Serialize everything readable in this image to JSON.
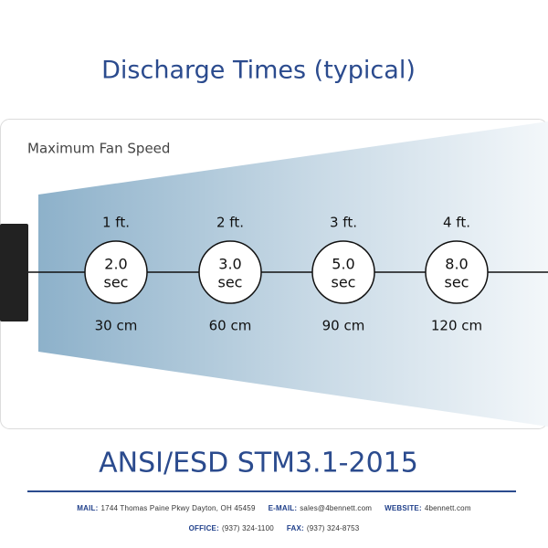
{
  "title": "Discharge Times (typical)",
  "panel_label": "Maximum Fan Speed",
  "points": [
    {
      "distance_ft": "1 ft.",
      "time": "2.0",
      "unit": "sec",
      "distance_cm": "30 cm"
    },
    {
      "distance_ft": "2 ft.",
      "time": "3.0",
      "unit": "sec",
      "distance_cm": "60 cm"
    },
    {
      "distance_ft": "3 ft.",
      "time": "5.0",
      "unit": "sec",
      "distance_cm": "90 cm"
    },
    {
      "distance_ft": "4 ft.",
      "time": "8.0",
      "unit": "sec",
      "distance_cm": "120 cm"
    }
  ],
  "standard": "ANSI/ESD STM3.1-2015",
  "footer": {
    "line1": [
      {
        "label": "MAIL:",
        "value": "1744 Thomas Paine Pkwy Dayton, OH 45459"
      },
      {
        "label": "E-MAIL:",
        "value": "sales@4bennett.com"
      },
      {
        "label": "WEBSITE:",
        "value": "4bennett.com"
      }
    ],
    "line2": [
      {
        "label": "OFFICE:",
        "value": "(937) 324-1100"
      },
      {
        "label": "FAX:",
        "value": "(937) 324-8753"
      }
    ]
  }
}
